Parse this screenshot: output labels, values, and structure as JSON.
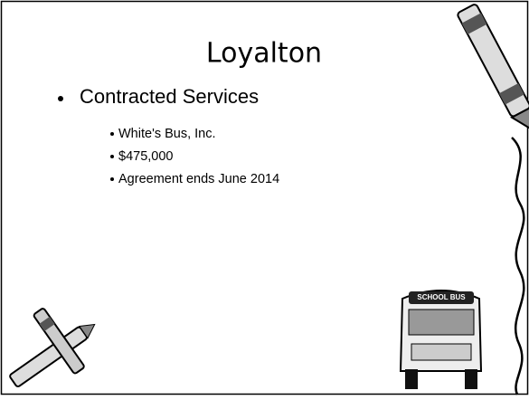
{
  "slide": {
    "title": "Loyalton",
    "bullets": [
      {
        "text": "Contracted Services",
        "sub": [
          "White's Bus, Inc.",
          "$475,000",
          "Agreement ends June 2014"
        ]
      }
    ],
    "clipart_text": "SCHOOL BUS"
  }
}
